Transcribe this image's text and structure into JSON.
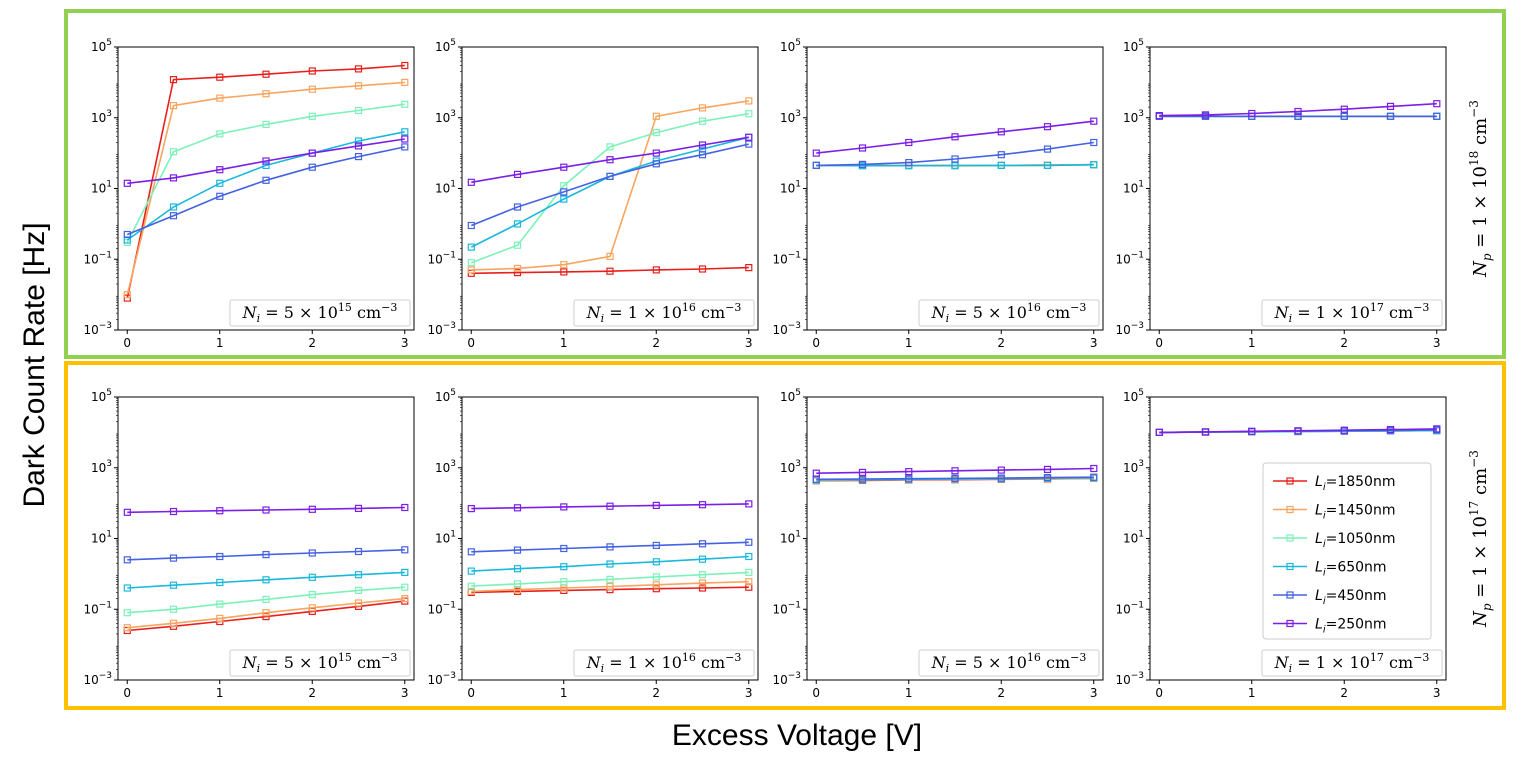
{
  "chart_data": {
    "type": "line",
    "xlabel": "Excess Voltage [V]",
    "ylabel": "Dark Count Rate [Hz]",
    "y_scale": "log",
    "xlim": [
      -0.1,
      3.1
    ],
    "ylim": [
      0.001,
      100000
    ],
    "x_ticks": [
      "0",
      "1",
      "2",
      "3"
    ],
    "y_ticks": [
      {
        "base": "10",
        "exp": "−3"
      },
      {
        "base": "10",
        "exp": "−1"
      },
      {
        "base": "10",
        "exp": "1"
      },
      {
        "base": "10",
        "exp": "3"
      },
      {
        "base": "10",
        "exp": "5"
      }
    ],
    "x": [
      0,
      0.5,
      1,
      1.5,
      2,
      2.5,
      3
    ],
    "series_styles": [
      {
        "name": "Li=1850nm",
        "label_var": "L",
        "label_sub": "i",
        "label_rest": "=1850nm",
        "color": "#e8201c"
      },
      {
        "name": "Li=1450nm",
        "label_var": "L",
        "label_sub": "i",
        "label_rest": "=1450nm",
        "color": "#f8a55f"
      },
      {
        "name": "Li=1050nm",
        "label_var": "L",
        "label_sub": "i",
        "label_rest": "=1050nm",
        "color": "#7ef1b9"
      },
      {
        "name": "Li=650nm",
        "label_var": "L",
        "label_sub": "i",
        "label_rest": "=650nm",
        "color": "#1ab8dc"
      },
      {
        "name": "Li=450nm",
        "label_var": "L",
        "label_sub": "i",
        "label_rest": "=450nm",
        "color": "#4462e2"
      },
      {
        "name": "Li=250nm",
        "label_var": "L",
        "label_sub": "i",
        "label_rest": "=250nm",
        "color": "#7b1fe8"
      }
    ],
    "rows": [
      {
        "label": {
          "prefix": "N",
          "sub": "p",
          "mid": " = 1 × 10",
          "exp": "18",
          "unit": " cm",
          "unit_exp": "−3"
        },
        "frame_color": "#92d050",
        "panels": [
          {
            "label": {
              "prefix": "N",
              "sub": "i",
              "mid": " = 5 × 10",
              "exp": "15",
              "unit": " cm",
              "unit_exp": "−3"
            },
            "series": [
              [
                0.008,
                12000,
                14000,
                17000,
                21000,
                24000,
                30000
              ],
              [
                0.01,
                2200,
                3600,
                4800,
                6400,
                8000,
                10000
              ],
              [
                0.3,
                110,
                350,
                650,
                1100,
                1600,
                2400
              ],
              [
                0.35,
                3,
                14,
                45,
                100,
                220,
                400
              ],
              [
                0.5,
                1.7,
                6,
                17,
                40,
                80,
                150
              ],
              [
                14,
                20,
                34,
                60,
                100,
                160,
                250
              ]
            ]
          },
          {
            "label": {
              "prefix": "N",
              "sub": "i",
              "mid": " = 1 × 10",
              "exp": "16",
              "unit": " cm",
              "unit_exp": "−3"
            },
            "series": [
              [
                0.04,
                0.042,
                0.044,
                0.046,
                0.05,
                0.053,
                0.058
              ],
              [
                0.05,
                0.055,
                0.07,
                0.12,
                1100,
                1900,
                3000
              ],
              [
                0.08,
                0.25,
                12,
                150,
                380,
                800,
                1300
              ],
              [
                0.22,
                1.0,
                5,
                22,
                60,
                130,
                280
              ],
              [
                0.9,
                3,
                8,
                22,
                50,
                90,
                180
              ],
              [
                15,
                25,
                40,
                65,
                100,
                170,
                280
              ]
            ]
          },
          {
            "label": {
              "prefix": "N",
              "sub": "i",
              "mid": " = 5 × 10",
              "exp": "16",
              "unit": " cm",
              "unit_exp": "−3"
            },
            "series": [
              [
                45,
                45,
                45,
                45,
                45,
                46,
                47
              ],
              [
                45,
                45,
                45,
                45,
                45,
                46,
                47
              ],
              [
                45,
                44,
                44,
                44,
                45,
                45,
                47
              ],
              [
                45,
                44,
                44,
                44,
                45,
                45,
                47
              ],
              [
                45,
                48,
                54,
                68,
                90,
                130,
                200
              ],
              [
                100,
                140,
                200,
                290,
                400,
                560,
                800
              ]
            ]
          },
          {
            "label": {
              "prefix": "N",
              "sub": "i",
              "mid": " = 1 × 10",
              "exp": "17",
              "unit": " cm",
              "unit_exp": "−3"
            },
            "series": [
              [
                1100,
                1100,
                1100,
                1100,
                1100,
                1100,
                1100
              ],
              [
                1100,
                1100,
                1100,
                1100,
                1100,
                1100,
                1100
              ],
              [
                1100,
                1100,
                1100,
                1100,
                1100,
                1100,
                1100
              ],
              [
                1100,
                1100,
                1100,
                1100,
                1100,
                1100,
                1100
              ],
              [
                1100,
                1100,
                1100,
                1100,
                1100,
                1100,
                1100
              ],
              [
                1150,
                1200,
                1320,
                1500,
                1750,
                2100,
                2500
              ]
            ]
          }
        ]
      },
      {
        "label": {
          "prefix": "N",
          "sub": "p",
          "mid": " = 1 × 10",
          "exp": "17",
          "unit": " cm",
          "unit_exp": "−3"
        },
        "frame_color": "#ffc000",
        "panels": [
          {
            "label": {
              "prefix": "N",
              "sub": "i",
              "mid": " = 5 × 10",
              "exp": "15",
              "unit": " cm",
              "unit_exp": "−3"
            },
            "series": [
              [
                0.025,
                0.033,
                0.045,
                0.062,
                0.087,
                0.12,
                0.17
              ],
              [
                0.03,
                0.04,
                0.055,
                0.08,
                0.11,
                0.15,
                0.2
              ],
              [
                0.08,
                0.1,
                0.14,
                0.19,
                0.26,
                0.34,
                0.42
              ],
              [
                0.4,
                0.48,
                0.57,
                0.68,
                0.8,
                0.95,
                1.1
              ],
              [
                2.5,
                2.8,
                3.1,
                3.5,
                3.9,
                4.3,
                4.8
              ],
              [
                55,
                58,
                61,
                64,
                67,
                71,
                75
              ]
            ]
          },
          {
            "label": {
              "prefix": "N",
              "sub": "i",
              "mid": " = 1 × 10",
              "exp": "16",
              "unit": " cm",
              "unit_exp": "−3"
            },
            "series": [
              [
                0.3,
                0.32,
                0.34,
                0.36,
                0.38,
                0.4,
                0.42
              ],
              [
                0.32,
                0.36,
                0.4,
                0.44,
                0.49,
                0.55,
                0.6
              ],
              [
                0.45,
                0.52,
                0.6,
                0.7,
                0.82,
                0.95,
                1.1
              ],
              [
                1.2,
                1.4,
                1.6,
                1.9,
                2.2,
                2.6,
                3.1
              ],
              [
                4.2,
                4.7,
                5.2,
                5.8,
                6.4,
                7.1,
                7.8
              ],
              [
                70,
                74,
                78,
                82,
                86,
                90,
                95
              ]
            ]
          },
          {
            "label": {
              "prefix": "N",
              "sub": "i",
              "mid": " = 5 × 10",
              "exp": "16",
              "unit": " cm",
              "unit_exp": "−3"
            },
            "series": [
              [
                430,
                440,
                450,
                460,
                470,
                480,
                500
              ],
              [
                440,
                450,
                460,
                470,
                480,
                490,
                500
              ],
              [
                450,
                460,
                470,
                480,
                490,
                505,
                520
              ],
              [
                450,
                460,
                470,
                480,
                490,
                505,
                520
              ],
              [
                470,
                480,
                490,
                500,
                510,
                525,
                540
              ],
              [
                700,
                740,
                780,
                820,
                860,
                900,
                950
              ]
            ]
          },
          {
            "label": {
              "prefix": "N",
              "sub": "i",
              "mid": " = 1 × 10",
              "exp": "17",
              "unit": " cm",
              "unit_exp": "−3"
            },
            "series": [
              [
                10000,
                10200,
                10400,
                10600,
                10800,
                11000,
                11200
              ],
              [
                10000,
                10200,
                10400,
                10600,
                10800,
                11000,
                11200
              ],
              [
                10000,
                10200,
                10400,
                10600,
                10800,
                11000,
                11200
              ],
              [
                10000,
                10200,
                10400,
                10600,
                10800,
                11000,
                11200
              ],
              [
                10000,
                10300,
                10600,
                10900,
                11200,
                11500,
                11800
              ],
              [
                10000,
                10300,
                10700,
                11100,
                11500,
                12000,
                12500
              ]
            ]
          }
        ]
      }
    ],
    "legend": {
      "placement": "row 2, panel 4, right"
    }
  }
}
